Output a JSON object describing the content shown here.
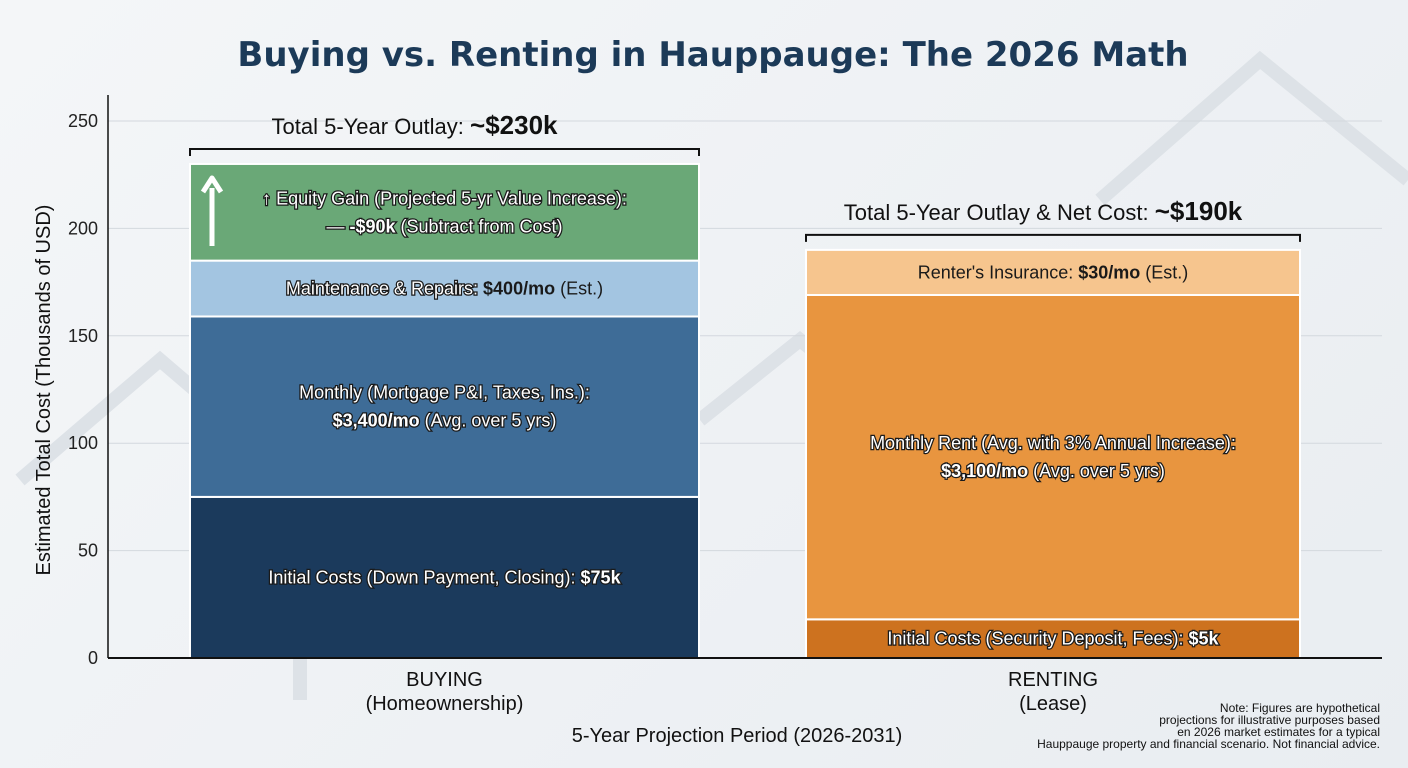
{
  "chart_data": {
    "type": "bar",
    "stacked": true,
    "title": "Buying vs. Renting in Hauppauge: The 2026 Math",
    "xlabel": "5-Year Projection Period (2026-2031)",
    "ylabel": "Estimated Total Cost (Thousands of USD)",
    "ylim": [
      0,
      250
    ],
    "yticks": [
      0,
      50,
      100,
      150,
      200,
      250
    ],
    "grid": true,
    "categories": [
      {
        "line1": "BUYING",
        "line2": "(Homeownership)"
      },
      {
        "line1": "RENTING",
        "line2": "(Lease)"
      }
    ],
    "bars": [
      {
        "total_label": {
          "text": "Total 5-Year Outlay: ",
          "bold": "~$230k"
        },
        "segments": [
          {
            "value": 75,
            "color": "#1b3a5c",
            "style": "out",
            "lines": [
              [
                {
                  "t": "Initial Costs (Down Payment, Closing): "
                },
                {
                  "t": "$75k",
                  "b": true
                }
              ]
            ]
          },
          {
            "value": 84,
            "color": "#3e6c97",
            "style": "out",
            "lines": [
              [
                {
                  "t": "Monthly (Mortgage P&I, Taxes, Ins.):"
                }
              ],
              [
                {
                  "t": "$3,400/mo",
                  "b": true
                },
                {
                  "t": " (Avg. over 5 yrs)"
                }
              ]
            ]
          },
          {
            "value": 26,
            "color": "#a3c5e1",
            "style": "mixed",
            "lines": [
              [
                {
                  "t": "Maintenance & Repairs: "
                },
                {
                  "t": "$400/mo",
                  "b": true,
                  "d": true
                },
                {
                  "t": " (Est.)",
                  "d": true
                }
              ]
            ]
          },
          {
            "value": 45,
            "color": "#6aa877",
            "style": "out",
            "arrow": true,
            "lines": [
              [
                {
                  "t": "↑ Equity Gain (Projected 5-yr Value Increase):"
                }
              ],
              [
                {
                  "t": "—  "
                },
                {
                  "t": "-$90k",
                  "b": true
                },
                {
                  "t": " (Subtract from Cost)"
                }
              ]
            ]
          }
        ]
      },
      {
        "total_label": {
          "text": "Total 5-Year Outlay & Net Cost: ",
          "bold": "~$190k"
        },
        "segments": [
          {
            "value": 18,
            "color": "#cd721f",
            "style": "out",
            "lines": [
              [
                {
                  "t": "Initial Costs (Security Deposit, Fees): "
                },
                {
                  "t": "$5k",
                  "b": true
                }
              ]
            ]
          },
          {
            "value": 151,
            "color": "#e8953f",
            "style": "out",
            "lines": [
              [
                {
                  "t": "Monthly Rent (Avg. with 3% Annual Increase):"
                }
              ],
              [
                {
                  "t": "$3,100/mo",
                  "b": true
                },
                {
                  "t": " (Avg. over 5 yrs)"
                }
              ]
            ]
          },
          {
            "value": 21,
            "color": "#f6c58e",
            "style": "dark",
            "lines": [
              [
                {
                  "t": "Renter's Insurance: "
                },
                {
                  "t": "$30/mo",
                  "b": true
                },
                {
                  "t": " (Est.)"
                }
              ]
            ]
          }
        ]
      }
    ],
    "note": [
      "Note: Figures are hypothetical",
      "projections for illustrative purposes based",
      "en 2026 market estimates for a typical",
      "Hauppauge property and financial scenario. Not financial advice."
    ]
  }
}
